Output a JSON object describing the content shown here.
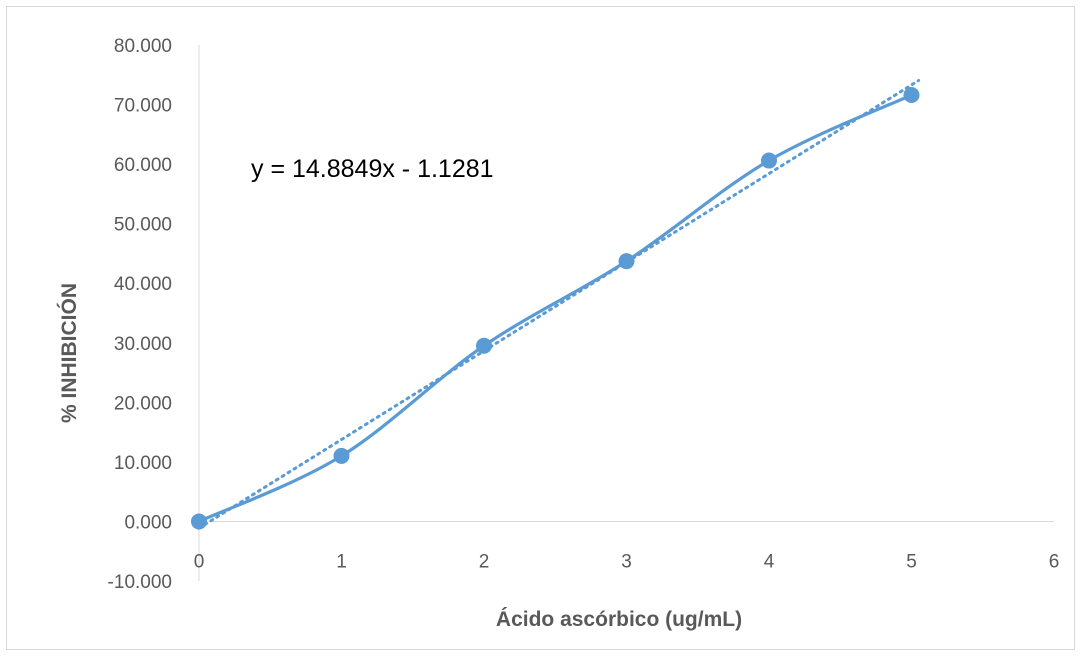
{
  "chart_data": {
    "type": "scatter",
    "title": "",
    "xlabel": "Ácido ascórbico (ug/mL)",
    "ylabel": "% INHIBICIÓN",
    "xlim": [
      0,
      6
    ],
    "ylim": [
      -10,
      80
    ],
    "x_ticks": [
      0,
      1,
      2,
      3,
      4,
      5,
      6
    ],
    "y_ticks": [
      -10,
      0,
      10,
      20,
      30,
      40,
      50,
      60,
      70,
      80
    ],
    "x_tick_labels": [
      "0",
      "1",
      "2",
      "3",
      "4",
      "5",
      "6"
    ],
    "y_tick_labels": [
      "-10.000",
      "0.000",
      "10.000",
      "20.000",
      "30.000",
      "40.000",
      "50.000",
      "60.000",
      "70.000",
      "80.000"
    ],
    "series": [
      {
        "style": "smooth-line-with-markers",
        "color": "#5b9bd5",
        "x": [
          0,
          1,
          2,
          3,
          4,
          5
        ],
        "y": [
          0.0,
          11.0,
          29.5,
          43.7,
          60.6,
          71.6
        ]
      }
    ],
    "trendline": {
      "type": "linear",
      "style": "dotted",
      "color": "#5b9bd5",
      "slope": 14.8849,
      "intercept": -1.1281,
      "x_range": [
        0,
        5
      ],
      "equation_label": "y = 14.8849x - 1.1281"
    },
    "grid": false,
    "legend": "none"
  }
}
